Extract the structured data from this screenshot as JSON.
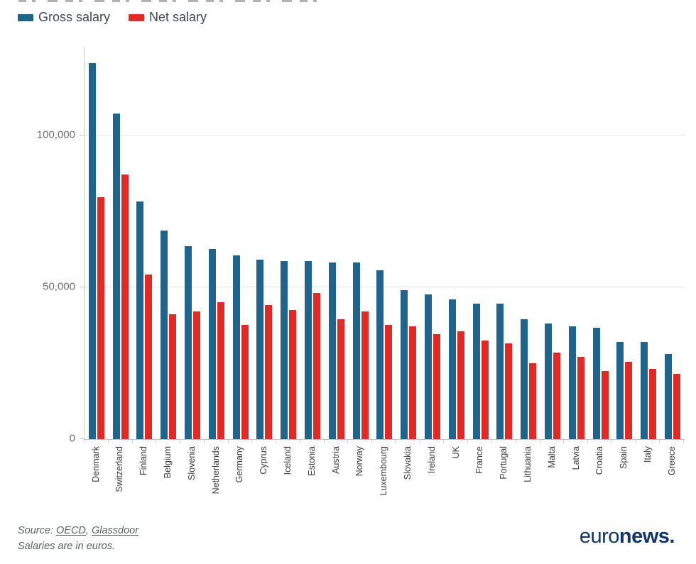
{
  "legend": {
    "items": [
      {
        "label": "Gross salary",
        "color": "#20648e"
      },
      {
        "label": "Net salary",
        "color": "#e12a26"
      }
    ]
  },
  "chart_data": {
    "type": "bar",
    "title": "",
    "xlabel": "",
    "ylabel": "",
    "unit": "euros",
    "categories": [
      "Denmark",
      "Switzerland",
      "Finland",
      "Belgium",
      "Slovenia",
      "Netherlands",
      "Germany",
      "Cyprus",
      "Iceland",
      "Estonia",
      "Austria",
      "Norway",
      "Luxembourg",
      "Slovakia",
      "Ireland",
      "UK",
      "France",
      "Portugal",
      "Lithuania",
      "Malta",
      "Latvia",
      "Croatia",
      "Spain",
      "Italy",
      "Greece"
    ],
    "series": [
      {
        "name": "Gross salary",
        "color": "#20648e",
        "values": [
          123500,
          107000,
          78000,
          68500,
          63500,
          62500,
          60500,
          59000,
          58500,
          58500,
          58000,
          58000,
          55500,
          49000,
          47500,
          46000,
          44500,
          44500,
          39500,
          38000,
          37000,
          36500,
          32000,
          32000,
          28000
        ]
      },
      {
        "name": "Net salary",
        "color": "#e12a26",
        "values": [
          79500,
          87000,
          54000,
          41000,
          42000,
          45000,
          37500,
          44000,
          42500,
          48000,
          39500,
          42000,
          37500,
          37000,
          34500,
          35500,
          32500,
          31500,
          25000,
          28500,
          27000,
          22500,
          25500,
          23000,
          21500
        ]
      }
    ],
    "ylim": [
      0,
      129000
    ],
    "yticks": [
      0,
      50000,
      100000
    ],
    "ytick_labels": [
      "0",
      "50,000",
      "100,000"
    ],
    "grid": true,
    "legend_position": "top-left"
  },
  "footer": {
    "source_prefix": "Source: ",
    "source_link_1": "OECD",
    "source_separator": ", ",
    "source_link_2": "Glassdoor",
    "note": "Salaries are in euros.",
    "brand_part_1": "euro",
    "brand_part_2": "news."
  }
}
